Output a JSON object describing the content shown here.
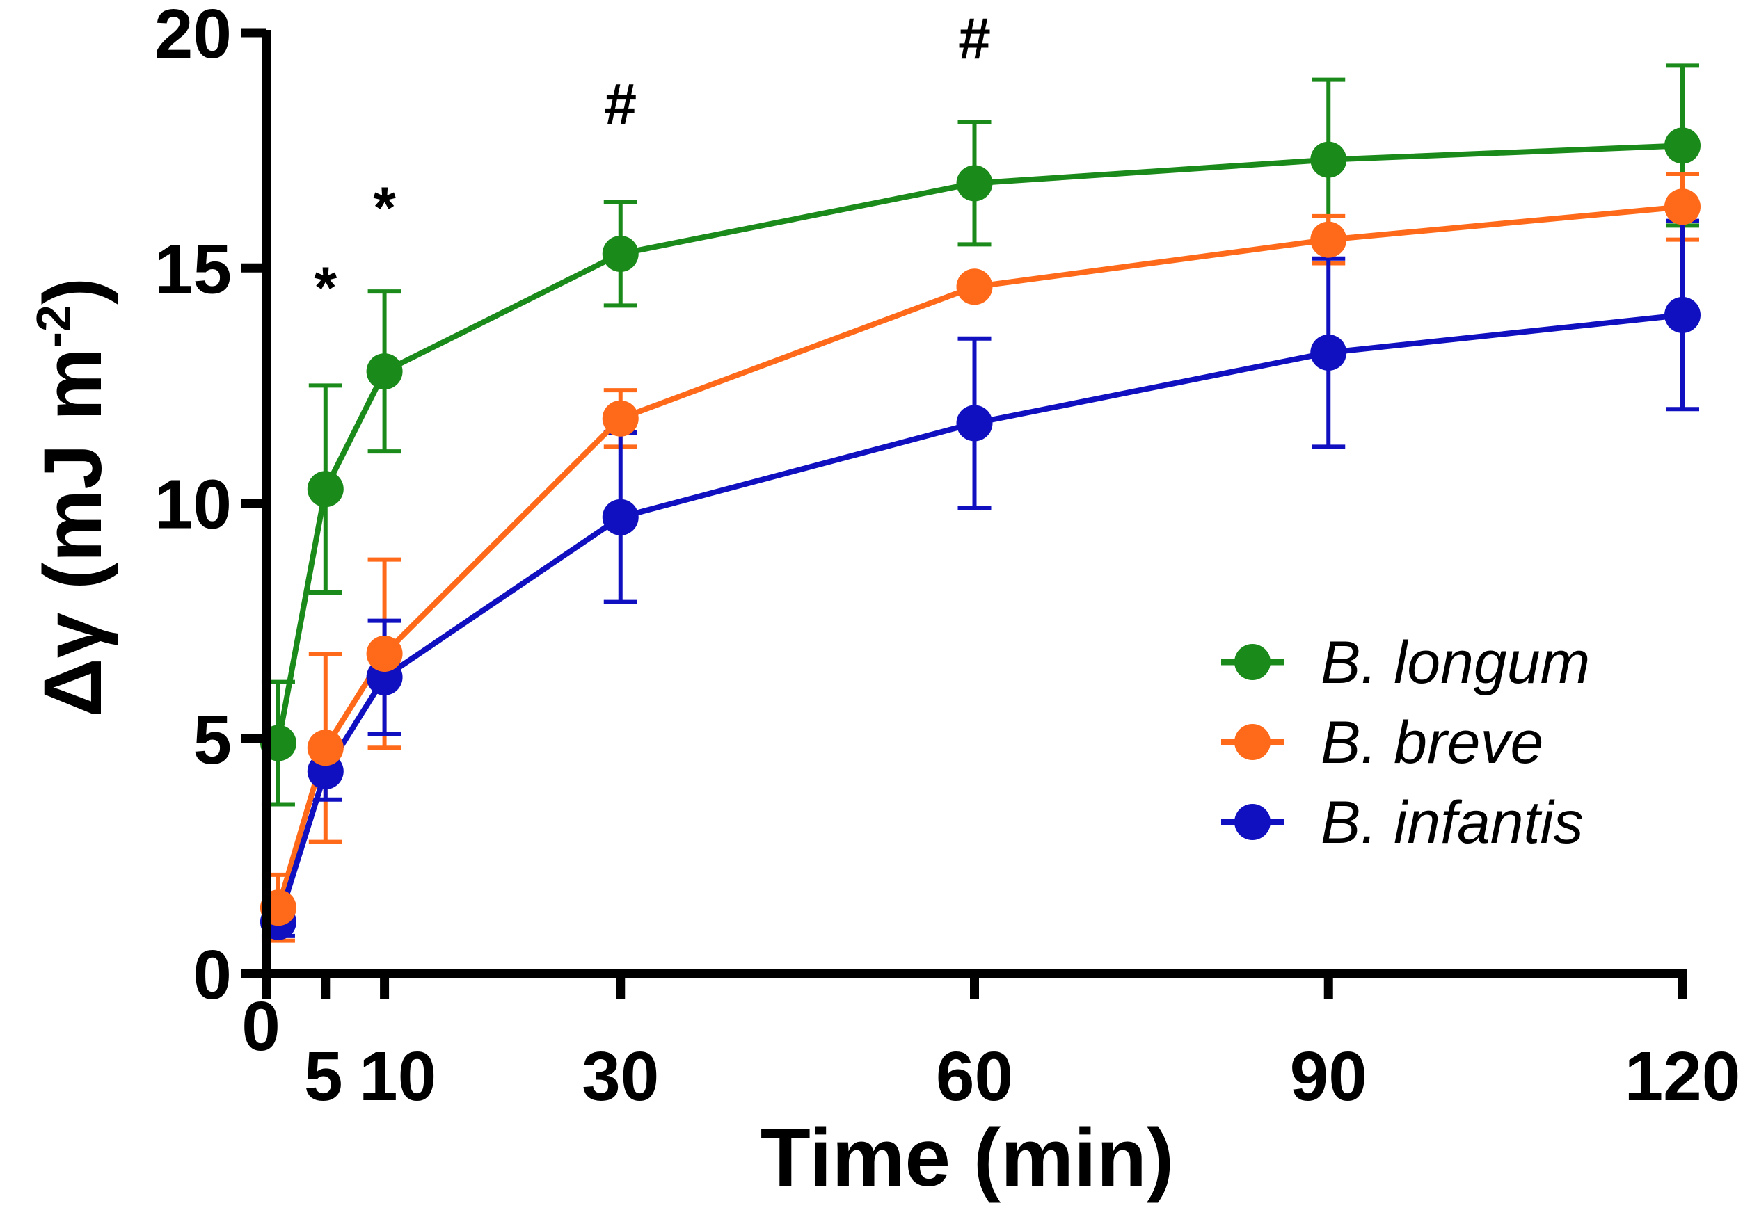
{
  "chart_data": {
    "type": "line",
    "title": "",
    "xlabel": "Time (min)",
    "ylabel": "Δγ (mJ m",
    "ylabel_sup": "-2",
    "ylabel_close": ")",
    "xlim": [
      0,
      120
    ],
    "ylim": [
      0,
      20
    ],
    "x_ticks": [
      0,
      5,
      10,
      30,
      60,
      90,
      120
    ],
    "x_tick_labels": [
      "0",
      "5",
      "10",
      "30",
      "60",
      "90",
      "120"
    ],
    "y_ticks": [
      0,
      5,
      10,
      15,
      20
    ],
    "y_tick_labels": [
      "0",
      "5",
      "10",
      "15",
      "20"
    ],
    "grid": false,
    "legend_position": "right",
    "x": [
      1,
      5,
      10,
      30,
      60,
      90,
      120
    ],
    "series": [
      {
        "name": "B. longum",
        "color": "#1a8a1a",
        "values": [
          4.9,
          10.3,
          12.8,
          15.3,
          16.8,
          17.3,
          17.6
        ],
        "errors": [
          1.3,
          2.2,
          1.7,
          1.1,
          1.3,
          1.7,
          1.7
        ]
      },
      {
        "name": "B. breve",
        "color": "#ff6a1a",
        "values": [
          1.4,
          4.8,
          6.8,
          11.8,
          14.6,
          15.6,
          16.3
        ],
        "errors": [
          0.7,
          2.0,
          2.0,
          0.6,
          0.0,
          0.5,
          0.7
        ]
      },
      {
        "name": "B. infantis",
        "color": "#1010c0",
        "values": [
          1.1,
          4.3,
          6.3,
          9.7,
          11.7,
          13.2,
          14.0
        ],
        "errors": [
          0.3,
          0.6,
          1.2,
          1.8,
          1.8,
          2.0,
          2.0
        ]
      }
    ],
    "annotations": [
      {
        "text": "*",
        "x": 5,
        "y": 14.6
      },
      {
        "text": "*",
        "x": 10,
        "y": 16.3
      },
      {
        "text": "#",
        "x": 30,
        "y": 18.5
      },
      {
        "text": "#",
        "x": 60,
        "y": 19.9
      }
    ]
  }
}
